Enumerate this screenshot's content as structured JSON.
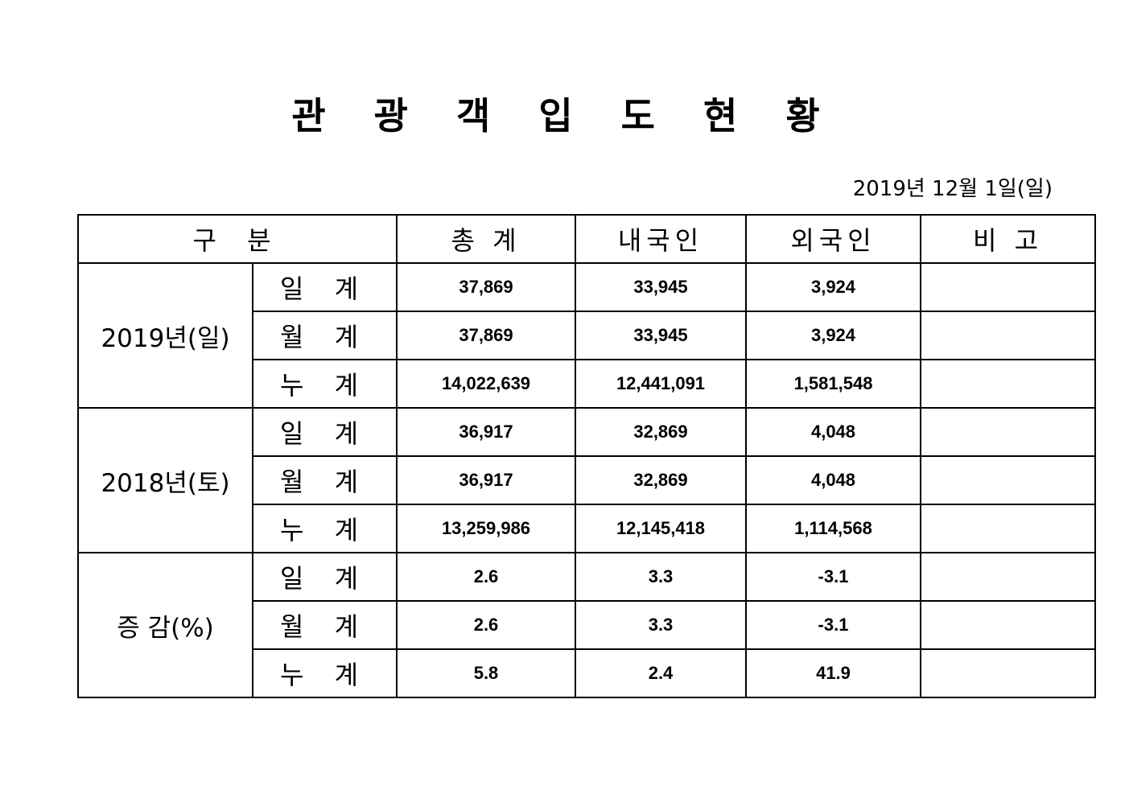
{
  "title": "관 광 객 입 도 현 황",
  "date": "2019년  12월  1일(일)",
  "headers": [
    "구   분",
    "총   계",
    "내국인",
    "외국인",
    "비   고"
  ],
  "groups": [
    {
      "label": "2019년(일)",
      "rows": [
        {
          "sub": "일 계",
          "total": "37,869",
          "domestic": "33,945",
          "foreign": "3,924",
          "note": ""
        },
        {
          "sub": "월 계",
          "total": "37,869",
          "domestic": "33,945",
          "foreign": "3,924",
          "note": ""
        },
        {
          "sub": "누 계",
          "total": "14,022,639",
          "domestic": "12,441,091",
          "foreign": "1,581,548",
          "note": ""
        }
      ]
    },
    {
      "label": "2018년(토)",
      "rows": [
        {
          "sub": "일 계",
          "total": "36,917",
          "domestic": "32,869",
          "foreign": "4,048",
          "note": ""
        },
        {
          "sub": "월 계",
          "total": "36,917",
          "domestic": "32,869",
          "foreign": "4,048",
          "note": ""
        },
        {
          "sub": "누 계",
          "total": "13,259,986",
          "domestic": "12,145,418",
          "foreign": "1,114,568",
          "note": ""
        }
      ]
    },
    {
      "label": "증 감(%)",
      "rows": [
        {
          "sub": "일 계",
          "total": "2.6",
          "domestic": "3.3",
          "foreign": "-3.1",
          "note": ""
        },
        {
          "sub": "월 계",
          "total": "2.6",
          "domestic": "3.3",
          "foreign": "-3.1",
          "note": ""
        },
        {
          "sub": "누 계",
          "total": "5.8",
          "domestic": "2.4",
          "foreign": "41.9",
          "note": ""
        }
      ]
    }
  ]
}
